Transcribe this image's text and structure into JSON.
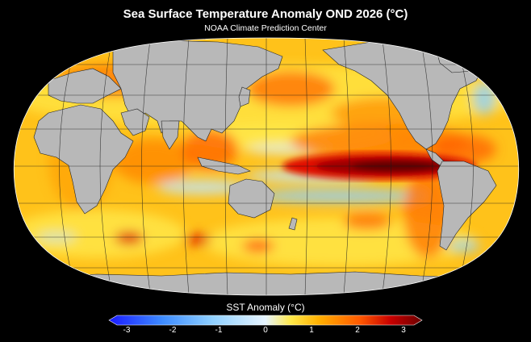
{
  "title": "Sea Surface Temperature Anomaly OND 2026 (°C)",
  "subtitle": "NOAA Climate Prediction Center",
  "colorbar": {
    "title": "SST Anomaly (°C)",
    "ticks": [
      "-3",
      "-2",
      "-1",
      "0",
      "1",
      "2",
      "3"
    ],
    "colors": [
      "#1a1aff",
      "#3d8bff",
      "#8fd0ff",
      "#e6f4ff",
      "#ffe94a",
      "#ffb000",
      "#ff5a00",
      "#c80000",
      "#6a0000"
    ]
  },
  "map": {
    "projection": "Robinson-like (Pacific-centered)",
    "ocean_base_color": "#ffc21a",
    "land_color": "#b8b8b8"
  }
}
